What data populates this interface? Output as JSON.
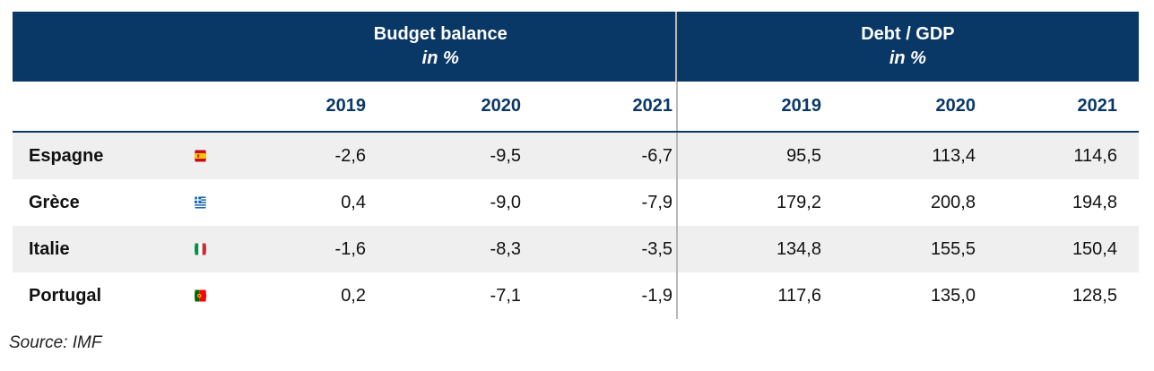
{
  "header": {
    "budget_title": "Budget balance",
    "budget_unit": "in %",
    "debt_title": "Debt / GDP",
    "debt_unit": "in %"
  },
  "years": [
    "2019",
    "2020",
    "2021",
    "2019",
    "2020",
    "2021"
  ],
  "rows": [
    {
      "country": "Espagne",
      "flag": "spain-flag-icon",
      "values": [
        "-2,6",
        "-9,5",
        "-6,7",
        "95,5",
        "113,4",
        "114,6"
      ]
    },
    {
      "country": "Grèce",
      "flag": "greece-flag-icon",
      "values": [
        "0,4",
        "-9,0",
        "-7,9",
        "179,2",
        "200,8",
        "194,8"
      ]
    },
    {
      "country": "Italie",
      "flag": "italy-flag-icon",
      "values": [
        "-1,6",
        "-8,3",
        "-3,5",
        "134,8",
        "155,5",
        "150,4"
      ]
    },
    {
      "country": "Portugal",
      "flag": "portugal-flag-icon",
      "values": [
        "0,2",
        "-7,1",
        "-1,9",
        "117,6",
        "135,0",
        "128,5"
      ]
    }
  ],
  "source": "Source: IMF",
  "colors": {
    "header_bg": "#0a3866",
    "year_text": "#0a3866",
    "row_shade": "#efefef"
  }
}
